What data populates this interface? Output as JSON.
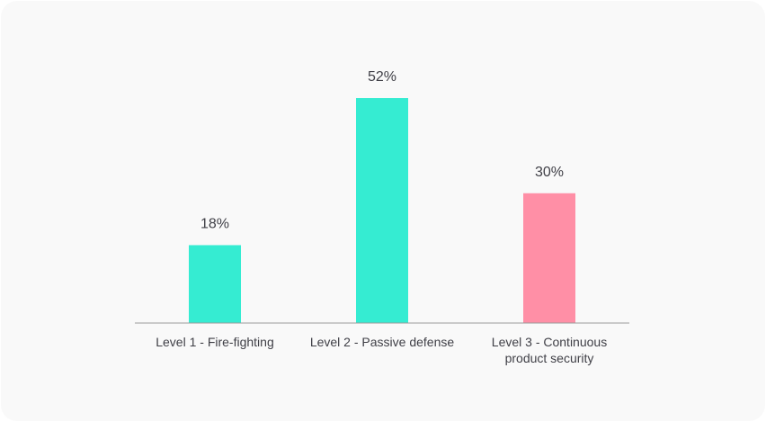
{
  "chart_data": {
    "type": "bar",
    "categories": [
      [
        "Level 1 - Fire-fighting"
      ],
      [
        "Level 2 - Passive defense"
      ],
      [
        "Level 3 - Continuous",
        "product security"
      ]
    ],
    "values": [
      18,
      52,
      30
    ],
    "value_labels": [
      "18%",
      "52%",
      "30%"
    ],
    "bar_colors": [
      "#35ecd2",
      "#35ecd2",
      "#ff8fa6"
    ],
    "axis_color": "#9a9a9a",
    "ylim": [
      0,
      52
    ],
    "title": "",
    "xlabel": "",
    "ylabel": "",
    "grid": false,
    "legend": "none"
  }
}
